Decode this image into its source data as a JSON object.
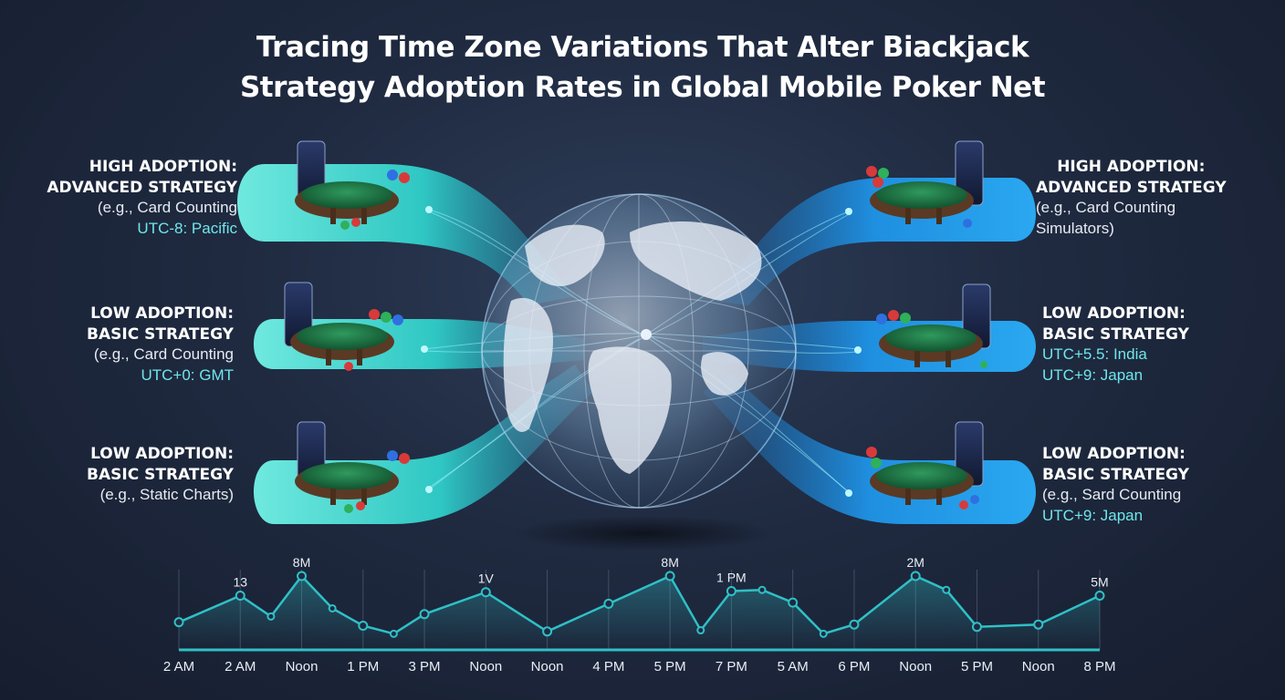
{
  "title": {
    "line1": "Tracing Time Zone Variations That Alter Biackjack",
    "line2": "Strategy Adoption Rates in Global Mobile Poker Net"
  },
  "colors": {
    "band_teal": "#2fc7c3",
    "band_blue": "#1f8fe0",
    "timezone_text": "#6fe6ea",
    "background": "#1f2a40"
  },
  "left_panels": [
    {
      "line1": "HIGH ADOPTION:",
      "line2": "ADVANCED STRATEGY",
      "line3": "(e.g., Card Counting",
      "tz": "UTC-8: Pacific"
    },
    {
      "line1": "LOW ADOPTION:",
      "line2": "BASIC STRATEGY",
      "line3": "(e.g., Card Counting",
      "tz": "UTC+0: GMT"
    },
    {
      "line1": "LOW ADOPTION:",
      "line2": "BASIC STRATEGY",
      "line3": "(e.g., Static Charts)"
    }
  ],
  "right_panels": [
    {
      "line1": "HIGH ADOPTION:",
      "line2": "ADVANCED STRATEGY",
      "line3": "(e.g., Card Counting",
      "line4": "Simulators)"
    },
    {
      "line1": "LOW ADOPTION:",
      "line2": "BASIC STRATEGY",
      "tz1": "UTC+5.5: India",
      "tz2": "UTC+9: Japan"
    },
    {
      "line1": "LOW ADOPTION:",
      "line2": "BASIC STRATEGY",
      "line3": "(e.g., Sard Counting",
      "tz": "UTC+9: Japan"
    }
  ],
  "chart_data": {
    "type": "line",
    "x": [
      "2 AM",
      "2 AM",
      "Noon",
      "1 PM",
      "3 PM",
      "Noon",
      "Noon",
      "4 PM",
      "5 PM",
      "7 PM",
      "5 AM",
      "6 PM",
      "Noon",
      "5 PM",
      "Noon",
      "8 PM"
    ],
    "values": [
      2.0,
      4.3,
      6.0,
      1.7,
      2.7,
      4.6,
      1.2,
      3.6,
      6.0,
      4.7,
      3.7,
      1.8,
      6.0,
      1.6,
      1.8,
      4.3
    ],
    "intermediate_points": [
      {
        "after_index": 1,
        "value": 2.5
      },
      {
        "after_index": 2,
        "value": 3.2
      },
      {
        "after_index": 3,
        "value": 1.0
      },
      {
        "after_index": 8,
        "value": 1.3
      },
      {
        "after_index": 9,
        "value": 4.8
      },
      {
        "after_index": 10,
        "value": 1.0
      },
      {
        "after_index": 12,
        "value": 4.8
      }
    ],
    "data_labels": [
      {
        "index": 1,
        "text": "13"
      },
      {
        "index": 2,
        "text": "8M"
      },
      {
        "index": 5,
        "text": "1V"
      },
      {
        "index": 8,
        "text": "8M"
      },
      {
        "index": 9,
        "text": "1 PM"
      },
      {
        "index": 12,
        "text": "2M"
      },
      {
        "index": 15,
        "text": "5M"
      }
    ],
    "ylim": [
      0,
      7.5
    ],
    "grid": "vertical",
    "line_color": "#2fc0c6"
  }
}
